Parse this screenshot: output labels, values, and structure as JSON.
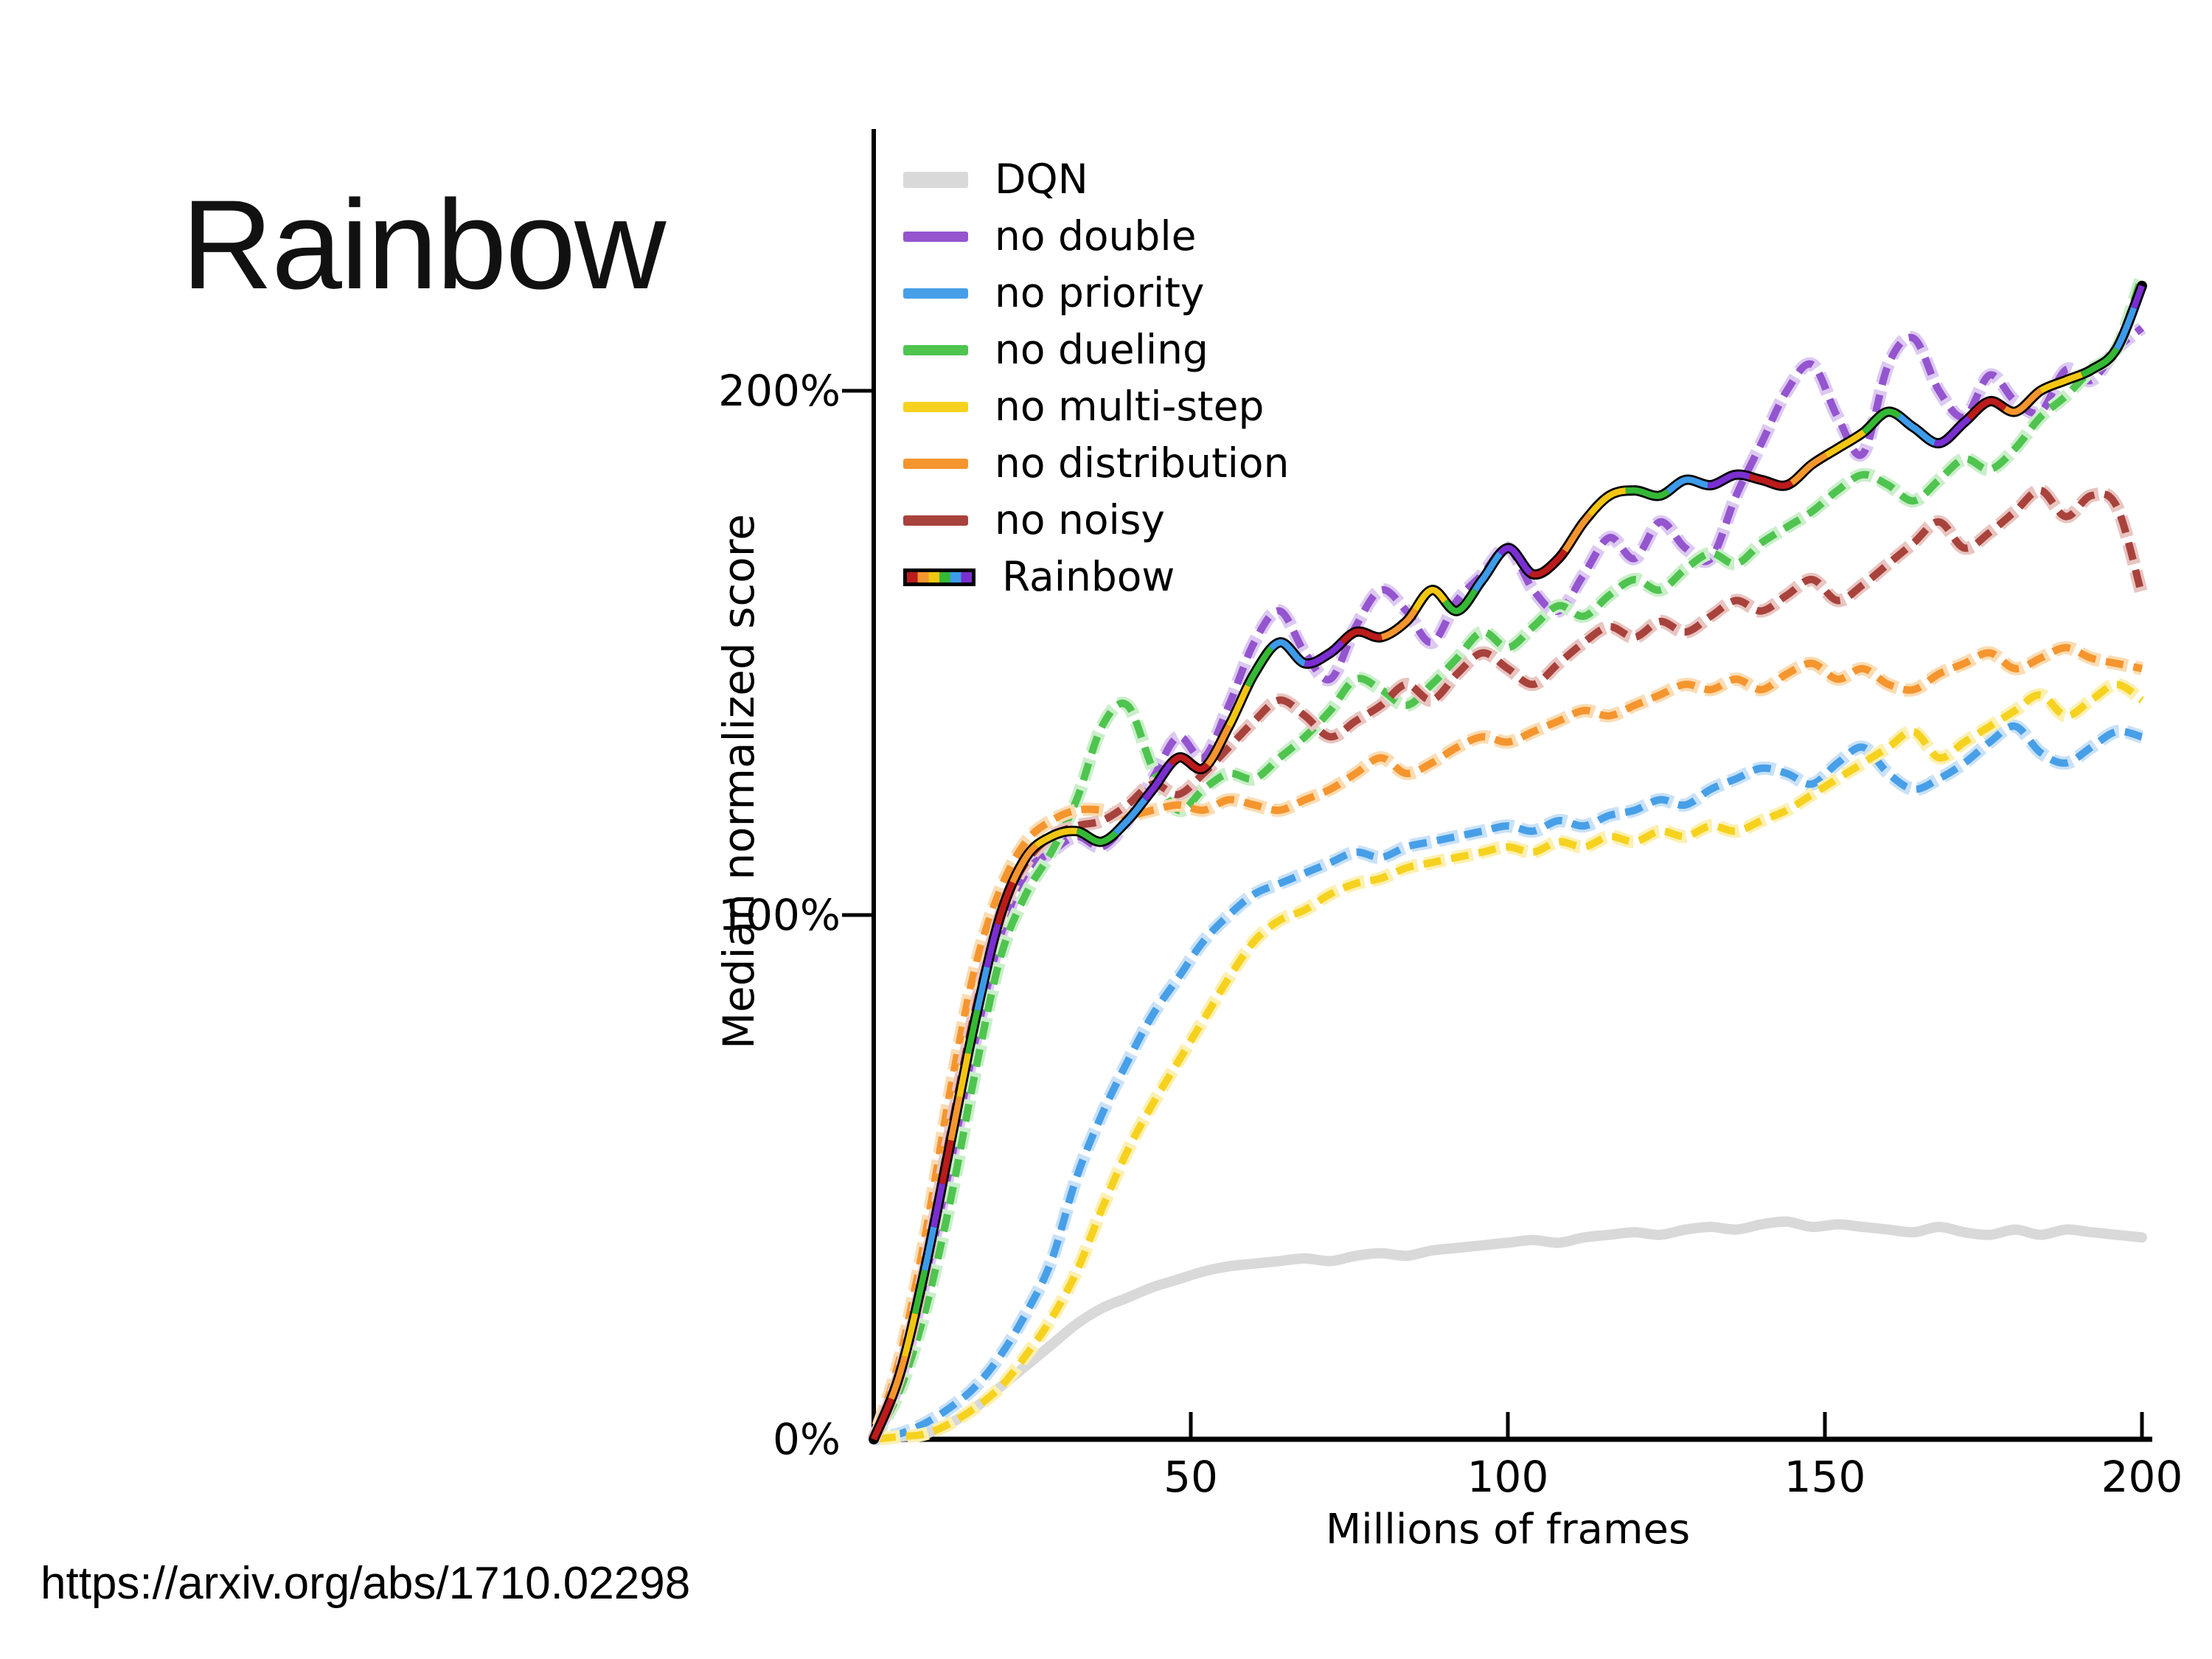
{
  "page": {
    "title": "Rainbow",
    "source_url": "https://arxiv.org/abs/1710.02298",
    "background": "#ffffff"
  },
  "chart_data": {
    "type": "line",
    "title": "",
    "xlabel": "Millions of frames",
    "ylabel": "Median normalized score",
    "xlim": [
      0,
      200
    ],
    "ylim": [
      0,
      248
    ],
    "grid": false,
    "legend_position": "top-left-inside",
    "x_ticks": [
      50,
      100,
      150,
      200
    ],
    "y_ticks": [
      {
        "value": 0,
        "label": "0%"
      },
      {
        "value": 100,
        "label": "100%"
      },
      {
        "value": 200,
        "label": "200%"
      }
    ],
    "axis_color": "#000000",
    "x_step": 4,
    "series": [
      {
        "name": "DQN",
        "color": "#d9d9d9",
        "style": "solid",
        "width": 14,
        "values": [
          0,
          0.5,
          1,
          3,
          6,
          10,
          14,
          18,
          22,
          25,
          27,
          29,
          30.5,
          32,
          33,
          33.5,
          34,
          34.5,
          34,
          35,
          35.5,
          35,
          36,
          36.5,
          37,
          37.5,
          38,
          37.5,
          38.5,
          39,
          39.5,
          39,
          40,
          40.5,
          40,
          41,
          41.5,
          40.5,
          41,
          40.5,
          40,
          39.5,
          40.5,
          39.5,
          39,
          40,
          39,
          40,
          39.5,
          39,
          38.5
        ]
      },
      {
        "name": "no double",
        "color": "#9455cf",
        "halo": "#dcc9f1",
        "style": "dashed",
        "width": 10,
        "values": [
          0,
          11,
          30,
          52,
          76,
          96,
          108,
          112,
          115,
          113,
          118,
          126,
          134,
          130,
          140,
          152,
          158,
          150,
          145,
          155,
          162,
          158,
          152,
          160,
          165,
          170,
          162,
          158,
          165,
          172,
          168,
          175,
          170,
          168,
          180,
          190,
          200,
          205,
          195,
          188,
          205,
          210,
          200,
          195,
          203,
          198,
          196,
          204,
          202,
          208,
          212
        ]
      },
      {
        "name": "no priority",
        "color": "#479fe8",
        "halo": "#c9e1f8",
        "style": "dashed",
        "width": 10,
        "values": [
          0,
          1,
          3,
          6,
          10,
          16,
          24,
          34,
          50,
          62,
          72,
          81,
          88,
          95,
          100,
          104,
          106,
          108,
          110,
          112,
          111,
          113,
          114,
          115,
          116,
          117,
          116,
          118,
          117,
          119,
          120,
          122,
          121,
          124,
          126,
          128,
          127,
          125,
          129,
          132,
          127,
          124,
          126,
          129,
          133,
          136,
          131,
          129,
          132,
          135,
          134
        ]
      },
      {
        "name": "no dueling",
        "color": "#4fc44f",
        "halo": "#caeeca",
        "style": "dashed",
        "width": 10,
        "values": [
          0,
          9,
          24,
          45,
          70,
          92,
          104,
          112,
          122,
          136,
          140,
          128,
          120,
          124,
          127,
          126,
          130,
          134,
          139,
          145,
          143,
          140,
          144,
          149,
          154,
          151,
          155,
          159,
          157,
          161,
          164,
          162,
          166,
          169,
          167,
          171,
          174,
          177,
          181,
          184,
          182,
          179,
          183,
          187,
          185,
          189,
          195,
          199,
          204,
          208,
          222
        ]
      },
      {
        "name": "no multi-step",
        "color": "#f6d21f",
        "halo": "#fcf0b2",
        "style": "dashed",
        "width": 10,
        "values": [
          0,
          0.5,
          1,
          3,
          6,
          10,
          16,
          23,
          32,
          44,
          55,
          64,
          72,
          80,
          88,
          95,
          99,
          101,
          104,
          106,
          107,
          109,
          110,
          111,
          112,
          113,
          112,
          114,
          113,
          115,
          114,
          116,
          115,
          117,
          116,
          118,
          120,
          123,
          126,
          129,
          132,
          135,
          130,
          133,
          136,
          139,
          142,
          138,
          141,
          144,
          141
        ]
      },
      {
        "name": "no distribution",
        "color": "#f5952e",
        "halo": "#fbdcb3",
        "style": "dashed",
        "width": 10,
        "values": [
          0,
          15,
          38,
          66,
          90,
          105,
          114,
          118,
          120,
          120,
          119,
          120,
          121,
          120,
          122,
          121,
          120,
          122,
          124,
          127,
          130,
          127,
          129,
          132,
          134,
          133,
          135,
          137,
          139,
          138,
          140,
          142,
          144,
          143,
          145,
          143,
          146,
          148,
          145,
          147,
          144,
          143,
          146,
          148,
          150,
          147,
          149,
          151,
          149,
          148,
          147
        ]
      },
      {
        "name": "no noisy",
        "color": "#a8423c",
        "halo": "#e8c5c1",
        "style": "dashed",
        "width": 10,
        "values": [
          0,
          12,
          32,
          58,
          82,
          100,
          110,
          115,
          117,
          118,
          121,
          125,
          123,
          127,
          132,
          137,
          141,
          138,
          134,
          137,
          140,
          144,
          141,
          146,
          150,
          147,
          144,
          148,
          152,
          155,
          153,
          156,
          154,
          157,
          160,
          158,
          161,
          164,
          160,
          163,
          167,
          171,
          175,
          170,
          173,
          177,
          181,
          176,
          180,
          178,
          161
        ]
      },
      {
        "name": "Rainbow",
        "color": "rainbow",
        "outline": "#000000",
        "palette": [
          "#bb1b1b",
          "#f5952e",
          "#f3c613",
          "#35b835",
          "#3d9be9",
          "#7a2fd0"
        ],
        "style": "multicolor",
        "width": 14,
        "values": [
          0,
          12,
          32,
          56,
          80,
          100,
          111,
          115,
          116,
          114,
          118,
          124,
          130,
          128,
          136,
          146,
          152,
          148,
          150,
          154,
          153,
          156,
          162,
          158,
          164,
          170,
          165,
          168,
          175,
          180,
          181,
          180,
          183,
          182,
          184,
          183,
          182,
          186,
          189,
          192,
          196,
          193,
          190,
          194,
          198,
          196,
          200,
          202,
          204,
          208,
          220
        ]
      }
    ]
  }
}
